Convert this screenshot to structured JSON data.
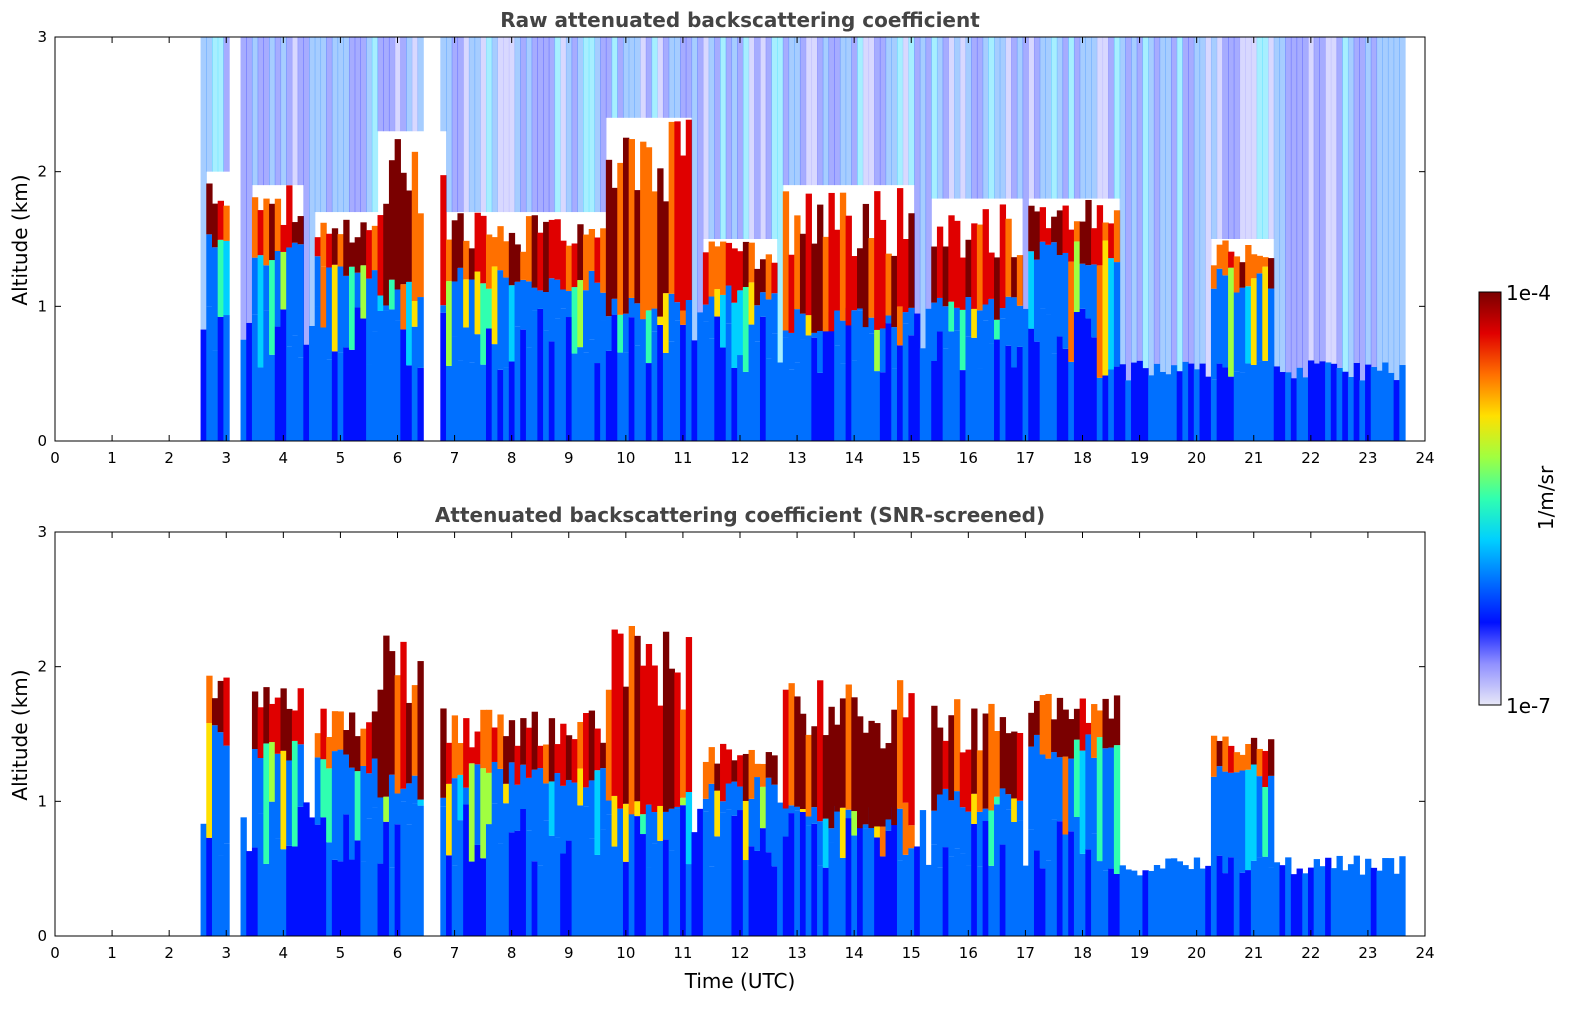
{
  "chart_data": [
    {
      "type": "heatmap",
      "title": "Raw attenuated backscattering coefficient",
      "xlabel": "",
      "ylabel": "Altitude (km)",
      "xlim": [
        0,
        24
      ],
      "ylim": [
        0,
        3
      ],
      "x_ticks": [
        "0",
        "1",
        "2",
        "3",
        "4",
        "5",
        "6",
        "7",
        "8",
        "9",
        "10",
        "11",
        "12",
        "13",
        "14",
        "15",
        "16",
        "17",
        "18",
        "19",
        "20",
        "21",
        "22",
        "23",
        "24"
      ],
      "y_ticks": [
        "0",
        "1",
        "2",
        "3"
      ],
      "data_start_hour": 2.55,
      "data_end_hour": 23.6,
      "gaps_hours": [
        [
          3.05,
          3.25
        ],
        [
          6.4,
          6.65
        ]
      ],
      "cloud_layers": [
        {
          "from": 2.6,
          "to": 3.0,
          "base_km": 1.4,
          "top_km": 2.0
        },
        {
          "from": 3.4,
          "to": 4.3,
          "base_km": 1.3,
          "top_km": 1.9
        },
        {
          "from": 4.5,
          "to": 5.6,
          "base_km": 1.2,
          "top_km": 1.7
        },
        {
          "from": 5.5,
          "to": 6.8,
          "base_km": 1.0,
          "top_km": 2.3
        },
        {
          "from": 6.8,
          "to": 9.6,
          "base_km": 1.1,
          "top_km": 1.7
        },
        {
          "from": 9.6,
          "to": 11.1,
          "base_km": 0.9,
          "top_km": 2.4
        },
        {
          "from": 11.3,
          "to": 12.6,
          "base_km": 1.0,
          "top_km": 1.5
        },
        {
          "from": 12.7,
          "to": 15.0,
          "base_km": 0.8,
          "top_km": 1.9
        },
        {
          "from": 15.3,
          "to": 16.9,
          "base_km": 0.9,
          "top_km": 1.8
        },
        {
          "from": 17.0,
          "to": 18.6,
          "base_km": 1.3,
          "top_km": 1.8
        },
        {
          "from": 20.2,
          "to": 21.3,
          "base_km": 1.1,
          "top_km": 1.5
        }
      ]
    },
    {
      "type": "heatmap",
      "title": "Attenuated backscattering coefficient (SNR-screened)",
      "xlabel": "Time (UTC)",
      "ylabel": "Altitude (km)",
      "xlim": [
        0,
        24
      ],
      "ylim": [
        0,
        3
      ],
      "x_ticks": [
        "0",
        "1",
        "2",
        "3",
        "4",
        "5",
        "6",
        "7",
        "8",
        "9",
        "10",
        "11",
        "12",
        "13",
        "14",
        "15",
        "16",
        "17",
        "18",
        "19",
        "20",
        "21",
        "22",
        "23",
        "24"
      ],
      "y_ticks": [
        "0",
        "1",
        "2",
        "3"
      ],
      "data_start_hour": 2.55,
      "data_end_hour": 23.6,
      "gaps_hours": [
        [
          3.05,
          3.25
        ],
        [
          6.4,
          6.65
        ]
      ],
      "cloud_layers": [
        {
          "from": 2.6,
          "to": 3.0,
          "base_km": 1.4,
          "top_km": 2.0
        },
        {
          "from": 3.4,
          "to": 4.3,
          "base_km": 1.3,
          "top_km": 1.9
        },
        {
          "from": 4.5,
          "to": 5.6,
          "base_km": 1.2,
          "top_km": 1.7
        },
        {
          "from": 5.5,
          "to": 6.8,
          "base_km": 1.0,
          "top_km": 2.3
        },
        {
          "from": 6.8,
          "to": 9.6,
          "base_km": 1.1,
          "top_km": 1.7
        },
        {
          "from": 9.6,
          "to": 11.1,
          "base_km": 0.9,
          "top_km": 2.4
        },
        {
          "from": 11.3,
          "to": 12.6,
          "base_km": 1.0,
          "top_km": 1.5
        },
        {
          "from": 12.7,
          "to": 15.0,
          "base_km": 0.8,
          "top_km": 1.9
        },
        {
          "from": 15.3,
          "to": 16.9,
          "base_km": 0.9,
          "top_km": 1.8
        },
        {
          "from": 17.0,
          "to": 18.6,
          "base_km": 1.3,
          "top_km": 1.8
        },
        {
          "from": 20.2,
          "to": 21.3,
          "base_km": 1.1,
          "top_km": 1.5
        }
      ]
    }
  ],
  "colorbar": {
    "label": "1/m/sr",
    "max_label": "1e-4",
    "min_label": "1e-7",
    "colormap": "jet",
    "colors": [
      "#e8e8f8",
      "#9090ff",
      "#0010ff",
      "#0070ff",
      "#00d0ff",
      "#30ffb0",
      "#a0ff40",
      "#ffe000",
      "#ff7000",
      "#e00000",
      "#7a0000"
    ]
  }
}
